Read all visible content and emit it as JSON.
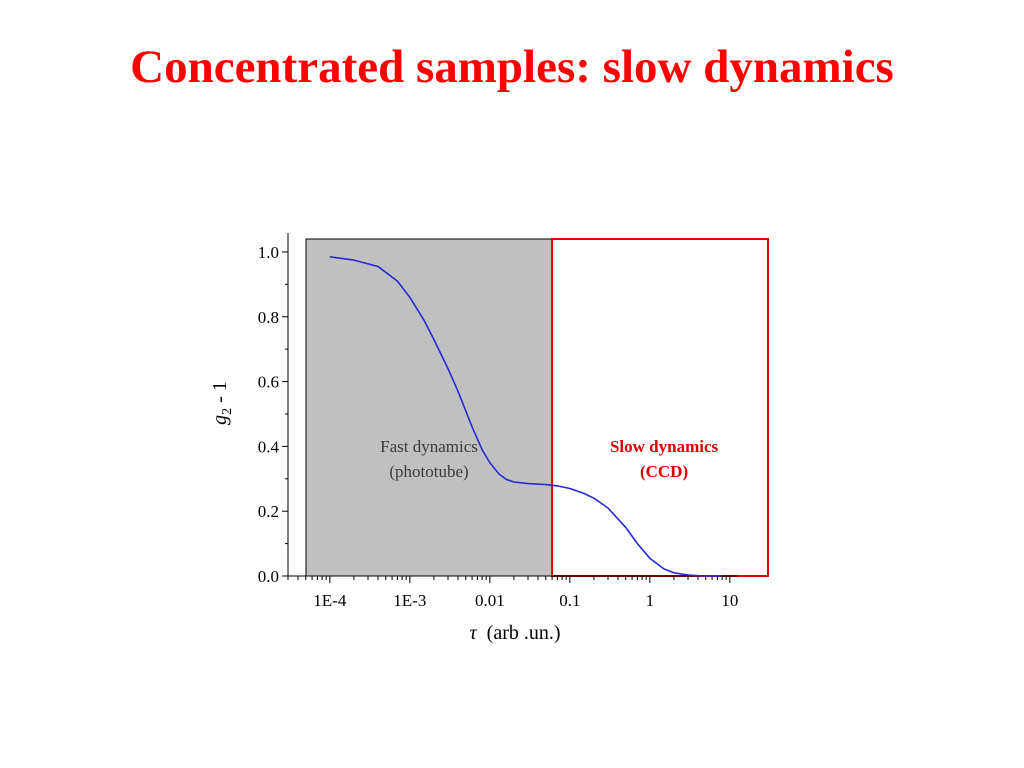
{
  "title": "Concentrated samples: slow dynamics",
  "colors": {
    "title": "#ff0000",
    "curve": "#2828d8",
    "fast_region_fill": "#c0c0c0",
    "slow_region_border": "#e00000",
    "fast_label": "#3a3a3a",
    "slow_label": "#e00000"
  },
  "chart_data": {
    "type": "line",
    "xscale": "log",
    "x_ticks": [
      0.0001,
      0.001,
      0.01,
      0.1,
      1,
      10
    ],
    "x_tick_labels": [
      "1E-4",
      "1E-3",
      "0.01",
      "0.1",
      "1",
      "10"
    ],
    "xlim": [
      3e-05,
      30
    ],
    "y_ticks": [
      0.0,
      0.2,
      0.4,
      0.6,
      0.8,
      1.0
    ],
    "y_tick_labels": [
      "0.0",
      "0.2",
      "0.4",
      "0.6",
      "0.8",
      "1.0"
    ],
    "ylim": [
      0.0,
      1.04
    ],
    "xlabel": {
      "symbol": "τ",
      "unit": "(arb .un.)"
    },
    "ylabel": {
      "base": "g",
      "subscript": "2",
      "suffix": " - 1"
    },
    "grid": false,
    "series": [
      {
        "x": [
          0.0001,
          0.0002,
          0.0004,
          0.0007,
          0.001,
          0.0015,
          0.002,
          0.003,
          0.004,
          0.005,
          0.006,
          0.008,
          0.01,
          0.013,
          0.016,
          0.02,
          0.03,
          0.05,
          0.07,
          0.1,
          0.15,
          0.2,
          0.3,
          0.5,
          0.7,
          1,
          1.5,
          2,
          3,
          4,
          6,
          8
        ],
        "y": [
          0.985,
          0.975,
          0.955,
          0.91,
          0.86,
          0.79,
          0.73,
          0.64,
          0.57,
          0.51,
          0.46,
          0.39,
          0.35,
          0.315,
          0.298,
          0.29,
          0.285,
          0.282,
          0.278,
          0.27,
          0.255,
          0.24,
          0.21,
          0.15,
          0.1,
          0.055,
          0.022,
          0.01,
          0.003,
          0.001,
          0.0,
          0.0
        ]
      }
    ],
    "regions": [
      {
        "name": "fast",
        "x_range": [
          3e-05,
          0.06
        ],
        "label_lines": [
          "Fast dynamics",
          "(phototube)"
        ],
        "style": "filled"
      },
      {
        "name": "slow",
        "x_range": [
          0.06,
          30
        ],
        "label_lines": [
          "Slow dynamics",
          "(CCD)"
        ],
        "style": "outlined"
      }
    ]
  }
}
